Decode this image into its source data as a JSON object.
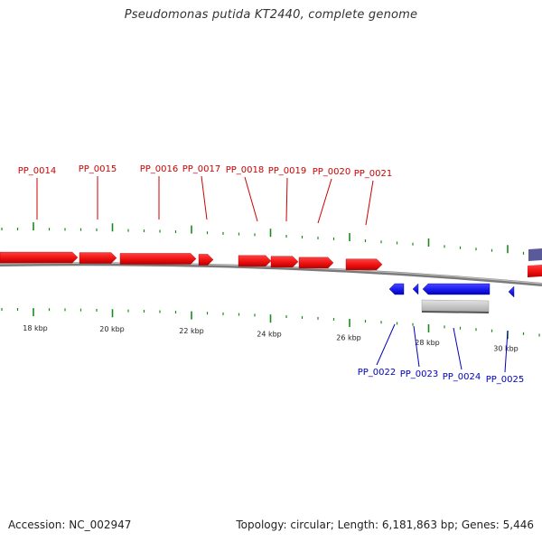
{
  "title": "Pseudomonas putida KT2440, complete genome",
  "footer": {
    "accession": "Accession: NC_002947",
    "summary": "Topology: circular; Length: 6,181,863 bp; Genes: 5,446"
  },
  "colors": {
    "forward_gene": "#ee1111",
    "reverse_gene": "#1a1aee",
    "forward_label": "#cc0000",
    "reverse_label": "#0000bb",
    "tick": "#1a8a1a",
    "backbone": "#888888",
    "other_feature": "#5a5a9a",
    "gray_feature": "#c8c8c8"
  },
  "axis": {
    "unit": "kbp",
    "tick_labels": [
      "18 kbp",
      "20 kbp",
      "22 kbp",
      "24 kbp",
      "26 kbp",
      "28 kbp",
      "30 kbp"
    ]
  },
  "forward_genes": [
    {
      "label": "PP_0014"
    },
    {
      "label": "PP_0015"
    },
    {
      "label": "PP_0016"
    },
    {
      "label": "PP_0017"
    },
    {
      "label": "PP_0018"
    },
    {
      "label": "PP_0019"
    },
    {
      "label": "PP_0020"
    },
    {
      "label": "PP_0021"
    }
  ],
  "reverse_genes": [
    {
      "label": "PP_0022"
    },
    {
      "label": "PP_0023"
    },
    {
      "label": "PP_0024"
    },
    {
      "label": "PP_0025"
    }
  ]
}
